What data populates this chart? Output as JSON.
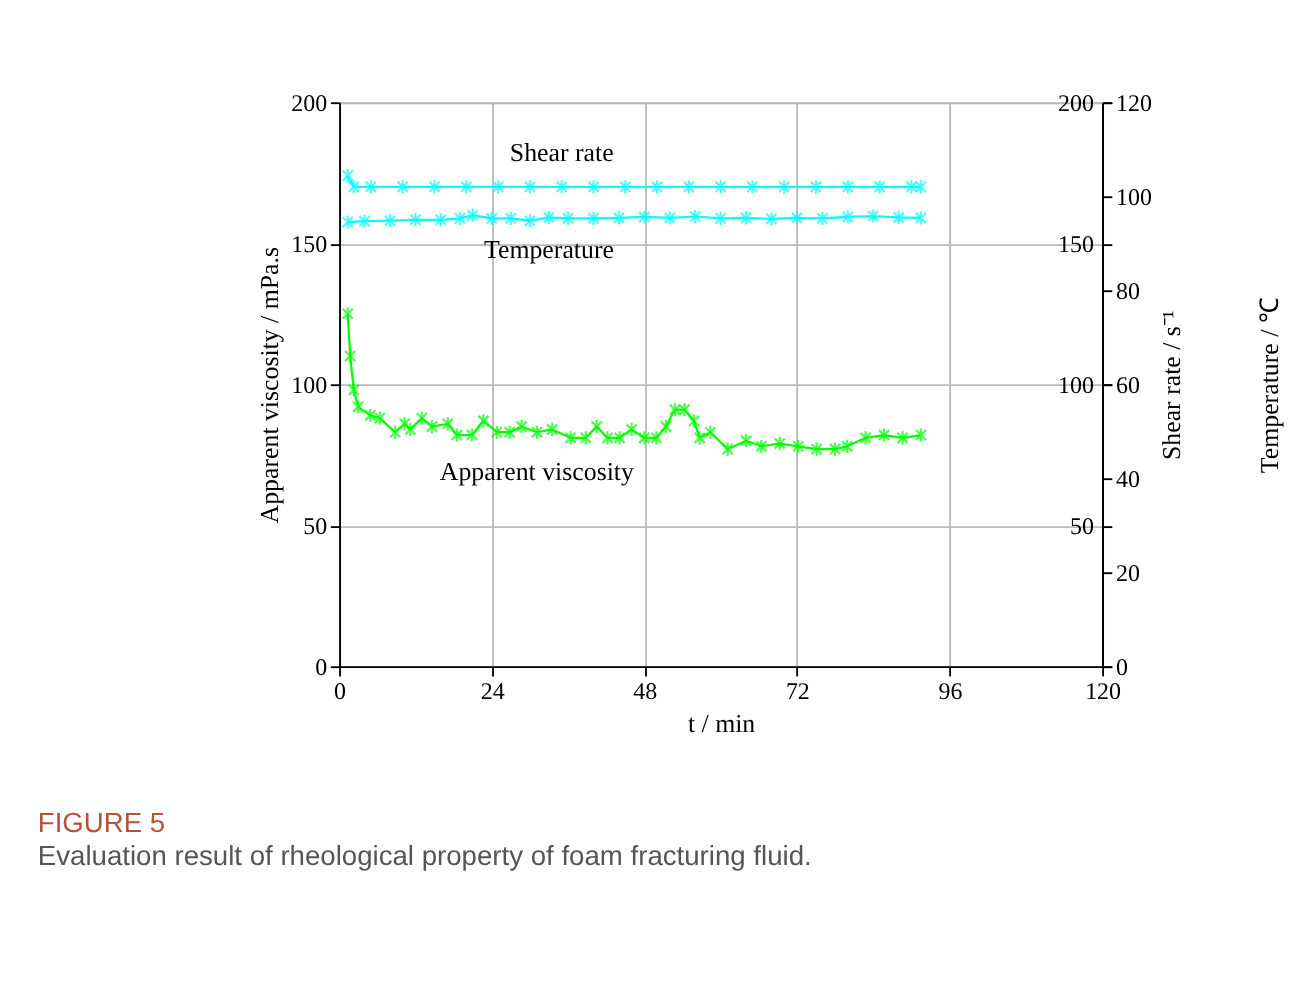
{
  "chart_data": {
    "type": "line",
    "title": "FIGURE 5",
    "subtitle": "Evaluation result of rheological property of foam fracturing fluid.",
    "xlabel": "t / min",
    "ylabel": "Apparent viscosity / mPa.s",
    "y2label": "Shear rate / s⁻¹",
    "y3label": "Temperature / ℃",
    "xlim": [
      0,
      120
    ],
    "xticks": [
      0,
      24,
      48,
      72,
      96,
      120
    ],
    "ylim": [
      0,
      200
    ],
    "yticks": [
      0,
      50,
      100,
      150,
      200
    ],
    "y2lim": [
      0,
      200
    ],
    "y2ticks": [
      {
        "value": 0,
        "label": null
      },
      50,
      100,
      150,
      200
    ],
    "y3lim": [
      0,
      120
    ],
    "y3ticks": [
      0,
      20,
      40,
      60,
      80,
      100,
      120
    ],
    "grid": true,
    "marker": "cross",
    "line_style": "solid",
    "series": [
      {
        "name": "Shear rate",
        "color": "#00ffff",
        "axis": "y2",
        "x": [
          1.35,
          2.3,
          5,
          10,
          15,
          20,
          25,
          30,
          35,
          40,
          45,
          50,
          55,
          60,
          65,
          70,
          75,
          80,
          85,
          90,
          91.5
        ],
        "values": [
          174,
          170,
          170,
          170,
          170,
          170,
          170,
          170,
          170,
          170,
          170,
          170,
          170,
          170,
          170,
          170,
          170,
          170,
          170,
          170,
          170
        ]
      },
      {
        "name": "Temperature",
        "color": "#00ffff",
        "axis": "y3",
        "x": [
          1.35,
          4,
          8,
          12,
          16,
          19,
          21,
          24,
          27,
          30,
          33,
          36,
          40,
          44,
          48,
          52,
          56,
          60,
          64,
          68,
          72,
          76,
          80,
          84,
          88,
          91.5
        ],
        "values": [
          94.5,
          94.7,
          94.8,
          95,
          95,
          95.3,
          96,
          95.3,
          95.3,
          94.8,
          95.5,
          95.3,
          95.3,
          95.4,
          95.6,
          95.4,
          95.7,
          95.3,
          95.4,
          95.2,
          95.4,
          95.3,
          95.6,
          95.8,
          95.5,
          95.4
        ]
      },
      {
        "name": "Apparent viscosity",
        "color": "#00ff00",
        "axis": "y",
        "x": [
          1.35,
          1.74,
          2.3,
          3.0,
          4.9,
          6.4,
          8.8,
          10.3,
          11.2,
          13.0,
          14.6,
          17.1,
          18.5,
          20.9,
          22.7,
          24.8,
          26.8,
          28.7,
          31.1,
          33.5,
          36.4,
          38.8,
          40.5,
          42.2,
          44.1,
          46.0,
          48.0,
          49.9,
          51.4,
          52.8,
          54.3,
          55.8,
          56.7,
          58.4,
          61.1,
          64.0,
          66.4,
          69.3,
          72.2,
          75.1,
          78.0,
          79.9,
          82.8,
          85.7,
          88.6,
          91.5
        ],
        "values": [
          125,
          110,
          98,
          92,
          89,
          88,
          83,
          86,
          84,
          88,
          85,
          86,
          82,
          82,
          87,
          83,
          83,
          85,
          83,
          84,
          81,
          81,
          85,
          81,
          81,
          84,
          81,
          81,
          85,
          91,
          91,
          87,
          81,
          83,
          77,
          80,
          78,
          79,
          78,
          77,
          77,
          78,
          81,
          82,
          81,
          82
        ]
      }
    ]
  }
}
